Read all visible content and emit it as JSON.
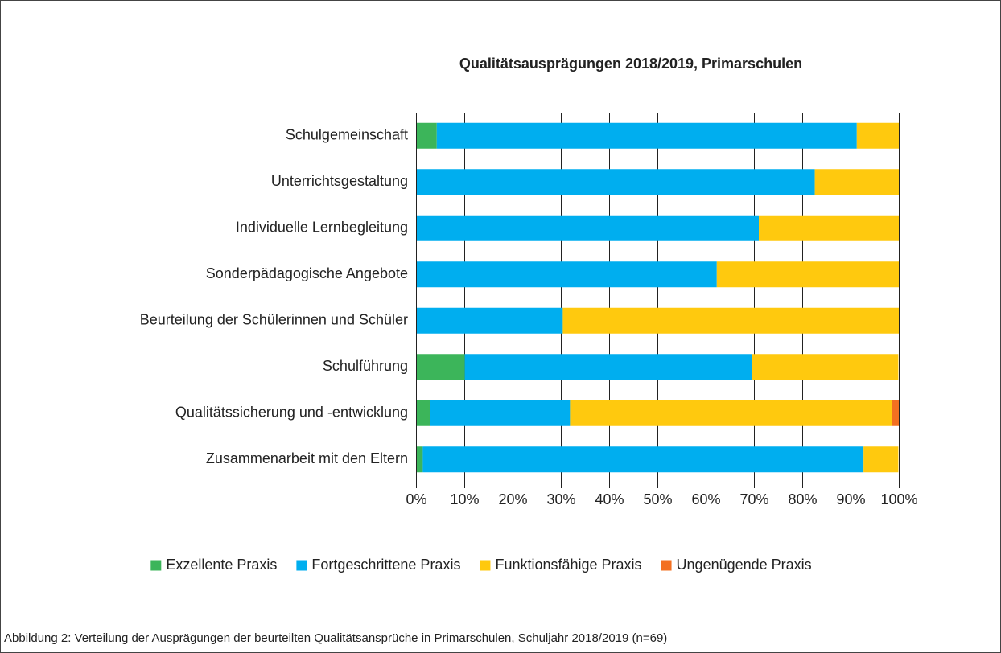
{
  "chart_data": {
    "type": "stacked_bar_horizontal",
    "title": "Qualitätsausprägungen 2018/2019, Primarschulen",
    "caption": "Abbildung 2: Verteilung der Ausprägungen der beurteilten Qualitätsansprüche in Primarschulen, Schuljahr 2018/2019 (n=69)",
    "categories": [
      "Schulgemeinschaft",
      "Unterrichtsgestaltung",
      "Individuelle Lernbegleitung",
      "Sonderpädagogische Angebote",
      "Beurteilung der Schülerinnen und Schüler",
      "Schulführung",
      "Qualitätssicherung und -entwicklung",
      "Zusammenarbeit mit den Eltern"
    ],
    "series": [
      {
        "name": "Exzellente Praxis",
        "color": "#3cb55a",
        "values": [
          4.3,
          0,
          0,
          0,
          0,
          10.1,
          2.9,
          1.4
        ]
      },
      {
        "name": "Fortgeschrittene Praxis",
        "color": "#00aeef",
        "values": [
          87.0,
          82.6,
          71.0,
          62.3,
          30.4,
          59.4,
          29.0,
          91.3
        ]
      },
      {
        "name": "Funktionsfähige Praxis",
        "color": "#ffc90e",
        "values": [
          8.7,
          17.4,
          29.0,
          37.7,
          69.6,
          30.4,
          66.7,
          7.2
        ]
      },
      {
        "name": "Ungenügende Praxis",
        "color": "#f37021",
        "values": [
          0,
          0,
          0,
          0,
          0,
          0,
          1.4,
          0
        ]
      }
    ],
    "xlim": [
      0,
      100
    ],
    "xticks": [
      {
        "value": 0,
        "label": "0%"
      },
      {
        "value": 10,
        "label": "10%"
      },
      {
        "value": 20,
        "label": "20%"
      },
      {
        "value": 30,
        "label": "30%"
      },
      {
        "value": 40,
        "label": "40%"
      },
      {
        "value": 50,
        "label": "50%"
      },
      {
        "value": 60,
        "label": "60%"
      },
      {
        "value": 70,
        "label": "70%"
      },
      {
        "value": 80,
        "label": "80%"
      },
      {
        "value": 90,
        "label": "90%"
      },
      {
        "value": 100,
        "label": "100%"
      }
    ],
    "grid": true,
    "legend": "bottom"
  }
}
